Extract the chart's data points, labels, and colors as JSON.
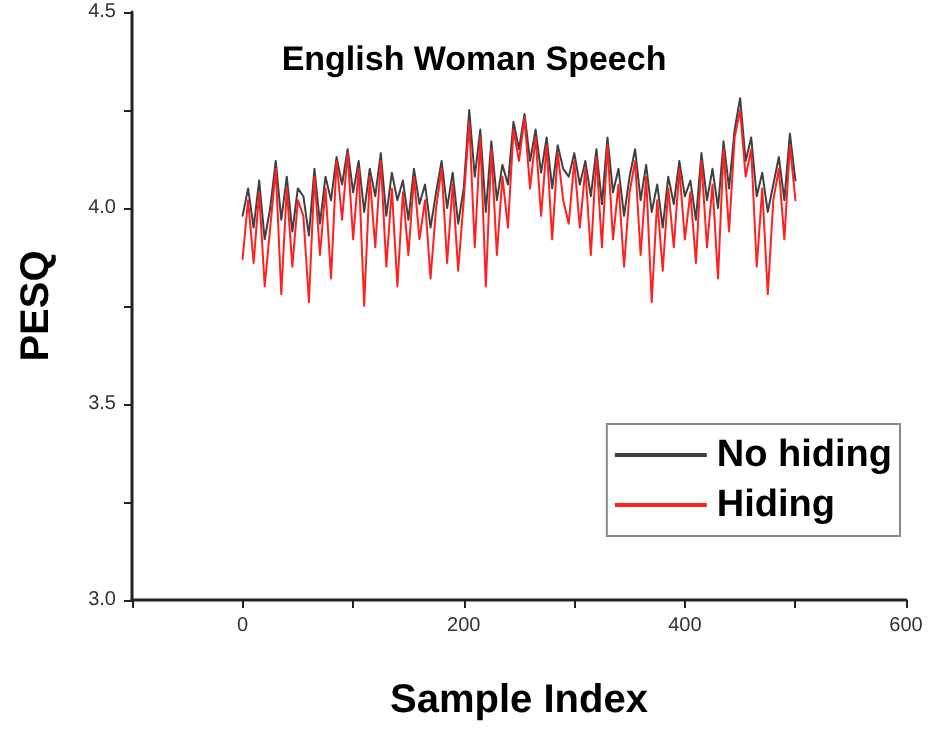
{
  "chart_data": {
    "type": "line",
    "title": "English Woman Speech",
    "xlabel": "Sample Index",
    "ylabel": "PESQ",
    "x": [
      0,
      5,
      10,
      15,
      20,
      25,
      30,
      35,
      40,
      45,
      50,
      55,
      60,
      65,
      70,
      75,
      80,
      85,
      90,
      95,
      100,
      105,
      110,
      115,
      120,
      125,
      130,
      135,
      140,
      145,
      150,
      155,
      160,
      165,
      170,
      175,
      180,
      185,
      190,
      195,
      200,
      205,
      210,
      215,
      220,
      225,
      230,
      235,
      240,
      245,
      250,
      255,
      260,
      265,
      270,
      275,
      280,
      285,
      290,
      295,
      300,
      305,
      310,
      315,
      320,
      325,
      330,
      335,
      340,
      345,
      350,
      355,
      360,
      365,
      370,
      375,
      380,
      385,
      390,
      395,
      400,
      405,
      410,
      415,
      420,
      425,
      430,
      435,
      440,
      445,
      450,
      455,
      460,
      465,
      470,
      475,
      480,
      485,
      490,
      495,
      500
    ],
    "series": [
      {
        "name": "No hiding",
        "color": "#404040",
        "values": [
          3.98,
          4.05,
          3.95,
          4.07,
          3.92,
          4.0,
          4.12,
          3.97,
          4.08,
          3.94,
          4.05,
          4.03,
          3.93,
          4.1,
          3.96,
          4.08,
          4.02,
          4.13,
          4.06,
          4.15,
          4.04,
          4.12,
          3.99,
          4.1,
          4.03,
          4.14,
          3.98,
          4.09,
          4.02,
          4.07,
          3.97,
          4.1,
          4.01,
          4.06,
          3.95,
          4.04,
          4.12,
          4.0,
          4.09,
          3.96,
          4.05,
          4.25,
          4.08,
          4.2,
          3.99,
          4.17,
          4.02,
          4.11,
          4.06,
          4.22,
          4.15,
          4.24,
          4.12,
          4.2,
          4.09,
          4.18,
          4.05,
          4.16,
          4.1,
          4.08,
          4.14,
          4.06,
          4.12,
          4.03,
          4.15,
          4.01,
          4.18,
          4.04,
          4.1,
          3.98,
          4.08,
          4.15,
          4.02,
          4.11,
          3.99,
          4.06,
          3.95,
          4.08,
          4.01,
          4.12,
          4.03,
          4.07,
          3.97,
          4.14,
          4.02,
          4.1,
          4.0,
          4.17,
          4.05,
          4.2,
          4.28,
          4.12,
          4.18,
          4.03,
          4.09,
          3.99,
          4.06,
          4.13,
          4.02,
          4.19,
          4.07
        ]
      },
      {
        "name": "Hiding",
        "color": "#ff2020",
        "values": [
          3.87,
          4.02,
          3.86,
          4.04,
          3.8,
          3.95,
          4.1,
          3.78,
          4.05,
          3.85,
          4.02,
          3.98,
          3.76,
          4.08,
          3.88,
          4.05,
          3.82,
          4.12,
          3.97,
          4.14,
          3.92,
          4.1,
          3.75,
          4.08,
          3.9,
          4.12,
          3.85,
          4.05,
          3.8,
          4.04,
          3.88,
          4.08,
          3.92,
          4.02,
          3.82,
          4.0,
          4.1,
          3.86,
          4.06,
          3.84,
          4.02,
          4.22,
          3.9,
          4.18,
          3.8,
          4.15,
          3.88,
          4.08,
          3.95,
          4.2,
          4.12,
          4.23,
          4.05,
          4.18,
          3.98,
          4.16,
          3.92,
          4.14,
          4.02,
          3.96,
          4.12,
          3.95,
          4.1,
          3.88,
          4.13,
          3.9,
          4.16,
          3.92,
          4.06,
          3.85,
          4.04,
          4.12,
          3.88,
          4.08,
          3.76,
          4.02,
          3.84,
          4.05,
          3.9,
          4.1,
          3.92,
          4.04,
          3.86,
          4.12,
          3.9,
          4.06,
          3.82,
          4.15,
          3.94,
          4.18,
          4.25,
          4.08,
          4.15,
          3.85,
          4.05,
          3.78,
          4.02,
          4.1,
          3.92,
          4.16,
          4.02
        ]
      }
    ],
    "xlim": [
      -100,
      600
    ],
    "xticks": [
      {
        "value": -100,
        "label": null
      },
      0,
      {
        "value": 100,
        "label": null
      },
      200,
      {
        "value": 300,
        "label": null
      },
      400,
      {
        "value": 500,
        "label": null
      },
      600
    ],
    "ylim": [
      3.0,
      4.5
    ],
    "yticks": [
      {
        "value": 3,
        "label": "3.0"
      },
      {
        "value": 3.25,
        "label": null
      },
      {
        "value": 3.5,
        "label": "3.5"
      },
      {
        "value": 3.75,
        "label": null
      },
      {
        "value": 4,
        "label": "4.0"
      },
      {
        "value": 4.25,
        "label": null
      },
      {
        "value": 4.5,
        "label": "4.5"
      }
    ],
    "legend": "bottom right",
    "marker": "none",
    "line_style": "solid",
    "grid": false
  }
}
